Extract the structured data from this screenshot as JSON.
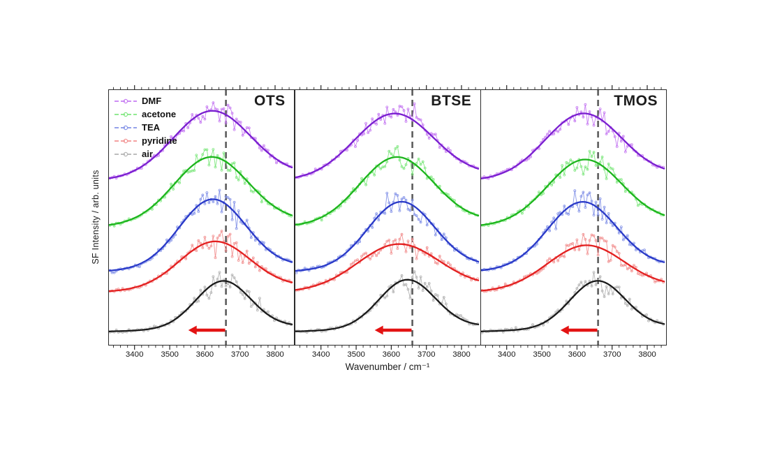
{
  "axes": {
    "x_title": "Wavenumber / cm⁻¹",
    "y_title": "SF Intensity / arb. units"
  },
  "legend": {
    "items": [
      {
        "label": "DMF"
      },
      {
        "label": "acetone"
      },
      {
        "label": "TEA"
      },
      {
        "label": "pyridine"
      },
      {
        "label": "air"
      }
    ]
  },
  "chart_data": {
    "type": "line",
    "x_range": [
      3325,
      3855
    ],
    "x_major_ticks": [
      3400,
      3500,
      3600,
      3700,
      3800
    ],
    "x_minor_tick_step": 20,
    "y_range": [
      0,
      100
    ],
    "grid": false,
    "y_ticks_visible": false,
    "dashed_guideline_x": 3660,
    "red_arrow": {
      "x_from": 3658,
      "x_to": 3553,
      "y": 6,
      "direction": "left"
    },
    "colors": {
      "DMF": {
        "fit": "#7a1fd0",
        "data": "#c77df2"
      },
      "acetone": {
        "fit": "#1db51d",
        "data": "#82e882"
      },
      "TEA": {
        "fit": "#2a3ac8",
        "data": "#8695e8"
      },
      "pyridine": {
        "fit": "#e32020",
        "data": "#f29494"
      },
      "air": {
        "fit": "#1a1a1a",
        "data": "#b4b4b4"
      },
      "guideline": "#5d5d5d",
      "arrow": "#e31313",
      "axis": "#222222"
    },
    "panels": [
      {
        "title": "OTS",
        "series": [
          {
            "name": "DMF",
            "peak_center": 3620,
            "sigma": 110,
            "amplitude": 26.0,
            "baseline": 64.5,
            "seed": 11
          },
          {
            "name": "acetone",
            "peak_center": 3618,
            "sigma": 105,
            "amplitude": 26.0,
            "baseline": 46.5,
            "seed": 12
          },
          {
            "name": "TEA",
            "peak_center": 3622,
            "sigma": 95,
            "amplitude": 27.0,
            "baseline": 29.0,
            "seed": 13
          },
          {
            "name": "pyridine",
            "peak_center": 3628,
            "sigma": 100,
            "amplitude": 18.5,
            "baseline": 21.0,
            "seed": 14
          },
          {
            "name": "air",
            "peak_center": 3652,
            "sigma": 78,
            "amplitude": 18.5,
            "baseline": 5.5,
            "seed": 15
          }
        ]
      },
      {
        "title": "BTSE",
        "series": [
          {
            "name": "DMF",
            "peak_center": 3608,
            "sigma": 112,
            "amplitude": 25.0,
            "baseline": 64.5,
            "seed": 21
          },
          {
            "name": "acetone",
            "peak_center": 3615,
            "sigma": 105,
            "amplitude": 26.0,
            "baseline": 46.5,
            "seed": 22
          },
          {
            "name": "TEA",
            "peak_center": 3628,
            "sigma": 95,
            "amplitude": 26.0,
            "baseline": 29.0,
            "seed": 23
          },
          {
            "name": "pyridine",
            "peak_center": 3620,
            "sigma": 115,
            "amplitude": 17.5,
            "baseline": 21.0,
            "seed": 24
          },
          {
            "name": "air",
            "peak_center": 3645,
            "sigma": 80,
            "amplitude": 19.0,
            "baseline": 5.5,
            "seed": 25
          }
        ]
      },
      {
        "title": "TMOS",
        "series": [
          {
            "name": "DMF",
            "peak_center": 3618,
            "sigma": 108,
            "amplitude": 25.0,
            "baseline": 64.5,
            "seed": 31
          },
          {
            "name": "acetone",
            "peak_center": 3622,
            "sigma": 105,
            "amplitude": 25.0,
            "baseline": 46.5,
            "seed": 32
          },
          {
            "name": "TEA",
            "peak_center": 3615,
            "sigma": 98,
            "amplitude": 26.0,
            "baseline": 29.0,
            "seed": 33
          },
          {
            "name": "pyridine",
            "peak_center": 3625,
            "sigma": 108,
            "amplitude": 17.0,
            "baseline": 21.0,
            "seed": 34
          },
          {
            "name": "air",
            "peak_center": 3658,
            "sigma": 78,
            "amplitude": 18.5,
            "baseline": 5.5,
            "seed": 35
          }
        ]
      }
    ]
  }
}
